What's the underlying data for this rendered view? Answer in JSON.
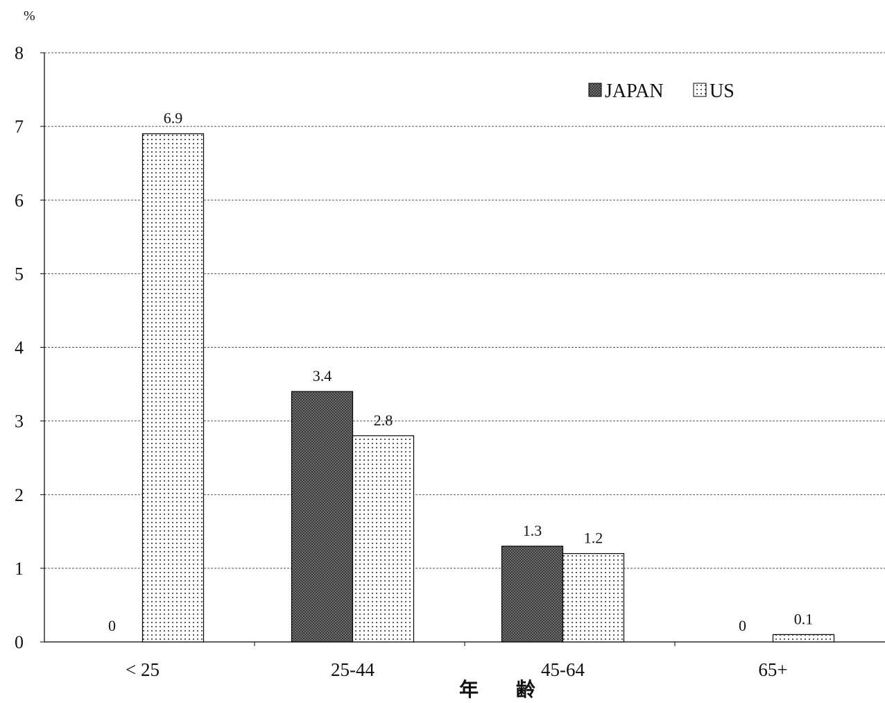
{
  "chart_data": {
    "type": "bar",
    "categories": [
      "< 25",
      "25-44",
      "45-64",
      "65+"
    ],
    "series": [
      {
        "name": "JAPAN",
        "values": [
          0,
          3.4,
          1.3,
          0
        ],
        "color": "#3a3a3a",
        "pattern": "dark-crosshatch"
      },
      {
        "name": "US",
        "values": [
          6.9,
          2.8,
          1.2,
          0.1
        ],
        "color": "#ffffff",
        "pattern": "dots"
      }
    ],
    "data_labels": {
      "JAPAN": [
        "0",
        "3.4",
        "1.3",
        "0"
      ],
      "US": [
        "6.9",
        "2.8",
        "1.2",
        "0.1"
      ]
    },
    "title": "",
    "xlabel": "年 齢",
    "ylabel": "%",
    "ylim": [
      0,
      8
    ],
    "yticks": [
      0,
      1,
      2,
      3,
      4,
      5,
      6,
      7,
      8
    ],
    "grid": true,
    "legend": {
      "position": "top-right",
      "entries": [
        "JAPAN",
        "US"
      ]
    }
  }
}
